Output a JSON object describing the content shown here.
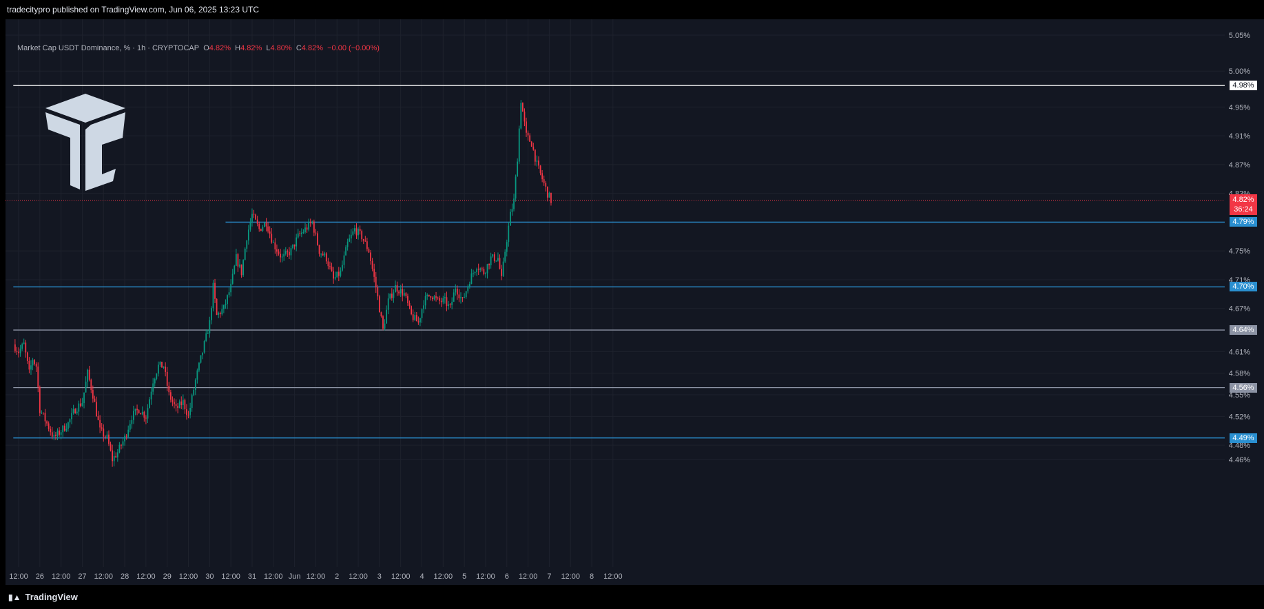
{
  "header": {
    "publisher": "tradecitypro published on TradingView.com, Jun 06, 2025 13:23 UTC"
  },
  "legend": {
    "symbol": "Market Cap USDT Dominance, % · 1h · CRYPTOCAP",
    "o_label": "O",
    "o_value": "4.82%",
    "h_label": "H",
    "h_value": "4.82%",
    "l_label": "L",
    "l_value": "4.80%",
    "c_label": "C",
    "c_value": "4.82%",
    "change": "−0.00 (−0.00%)"
  },
  "footer": {
    "brand": "TradingView"
  },
  "current_price": {
    "value": "4.82%",
    "countdown": "36:24",
    "color": "#f23645"
  },
  "colors": {
    "up": "#089981",
    "down": "#f23645",
    "background": "#131722",
    "grid": "#1e222d",
    "text": "#b2b5be"
  },
  "chart_data": {
    "type": "candlestick",
    "y_unit": "%",
    "ylim": [
      4.43,
      5.07
    ],
    "y_ticks": [
      "5.05%",
      "5.00%",
      "4.95%",
      "4.91%",
      "4.87%",
      "4.83%",
      "4.75%",
      "4.71%",
      "4.67%",
      "4.61%",
      "4.58%",
      "4.55%",
      "4.52%",
      "4.48%",
      "4.46%"
    ],
    "y_tick_values": [
      5.05,
      5.0,
      4.95,
      4.91,
      4.87,
      4.83,
      4.75,
      4.71,
      4.67,
      4.61,
      4.58,
      4.55,
      4.52,
      4.48,
      4.46
    ],
    "x_ticks": [
      "12:00",
      "26",
      "12:00",
      "27",
      "12:00",
      "28",
      "12:00",
      "29",
      "12:00",
      "30",
      "12:00",
      "31",
      "12:00",
      "Jun",
      "12:00",
      "2",
      "12:00",
      "3",
      "12:00",
      "4",
      "12:00",
      "5",
      "12:00",
      "6",
      "12:00",
      "7",
      "12:00",
      "8",
      "12:00"
    ],
    "x_tick_hours": [
      -12,
      0,
      12,
      24,
      36,
      48,
      60,
      72,
      84,
      96,
      108,
      120,
      132,
      144,
      156,
      168,
      180,
      192,
      204,
      216,
      228,
      240,
      252,
      264,
      276,
      288,
      300,
      312,
      324
    ],
    "horizontal_levels": [
      {
        "value": 4.98,
        "label": "4.98%",
        "color": "#ffffff",
        "start_hour": -15
      },
      {
        "value": 4.79,
        "label": "4.79%",
        "color": "#2a8fd0",
        "start_hour": 105
      },
      {
        "value": 4.7,
        "label": "4.70%",
        "color": "#2a8fd0",
        "start_hour": -15
      },
      {
        "value": 4.64,
        "label": "4.64%",
        "color": "#8c93a4",
        "start_hour": -15
      },
      {
        "value": 4.56,
        "label": "4.56%",
        "color": "#8c93a4",
        "start_hour": -15
      },
      {
        "value": 4.49,
        "label": "4.49%",
        "color": "#2a8fd0",
        "start_hour": -15
      }
    ],
    "price_path": [
      [
        -15,
        4.62
      ],
      [
        -12,
        4.61
      ],
      [
        -9,
        4.62
      ],
      [
        -6,
        4.58
      ],
      [
        -4,
        4.6
      ],
      [
        -2,
        4.59
      ],
      [
        0,
        4.53
      ],
      [
        4,
        4.51
      ],
      [
        8,
        4.49
      ],
      [
        12,
        4.5
      ],
      [
        16,
        4.51
      ],
      [
        20,
        4.53
      ],
      [
        24,
        4.54
      ],
      [
        27,
        4.58
      ],
      [
        30,
        4.55
      ],
      [
        34,
        4.5
      ],
      [
        38,
        4.49
      ],
      [
        41,
        4.46
      ],
      [
        44,
        4.47
      ],
      [
        48,
        4.49
      ],
      [
        52,
        4.52
      ],
      [
        56,
        4.53
      ],
      [
        60,
        4.52
      ],
      [
        64,
        4.57
      ],
      [
        67,
        4.59
      ],
      [
        70,
        4.59
      ],
      [
        73,
        4.55
      ],
      [
        77,
        4.53
      ],
      [
        81,
        4.54
      ],
      [
        84,
        4.52
      ],
      [
        88,
        4.57
      ],
      [
        92,
        4.61
      ],
      [
        96,
        4.65
      ],
      [
        98,
        4.7
      ],
      [
        100,
        4.66
      ],
      [
        104,
        4.67
      ],
      [
        108,
        4.7
      ],
      [
        111,
        4.74
      ],
      [
        114,
        4.72
      ],
      [
        117,
        4.77
      ],
      [
        120,
        4.8
      ],
      [
        124,
        4.78
      ],
      [
        128,
        4.79
      ],
      [
        132,
        4.76
      ],
      [
        137,
        4.74
      ],
      [
        142,
        4.75
      ],
      [
        146,
        4.77
      ],
      [
        150,
        4.78
      ],
      [
        154,
        4.79
      ],
      [
        158,
        4.75
      ],
      [
        162,
        4.74
      ],
      [
        166,
        4.71
      ],
      [
        170,
        4.72
      ],
      [
        174,
        4.76
      ],
      [
        178,
        4.78
      ],
      [
        182,
        4.77
      ],
      [
        186,
        4.75
      ],
      [
        190,
        4.7
      ],
      [
        192,
        4.67
      ],
      [
        194,
        4.64
      ],
      [
        197,
        4.68
      ],
      [
        201,
        4.7
      ],
      [
        206,
        4.69
      ],
      [
        210,
        4.66
      ],
      [
        214,
        4.65
      ],
      [
        217,
        4.68
      ],
      [
        221,
        4.69
      ],
      [
        225,
        4.68
      ],
      [
        229,
        4.68
      ],
      [
        232,
        4.67
      ],
      [
        235,
        4.7
      ],
      [
        239,
        4.68
      ],
      [
        243,
        4.71
      ],
      [
        247,
        4.73
      ],
      [
        251,
        4.72
      ],
      [
        255,
        4.74
      ],
      [
        259,
        4.74
      ],
      [
        261,
        4.71
      ],
      [
        263,
        4.75
      ],
      [
        266,
        4.8
      ],
      [
        268,
        4.82
      ],
      [
        270,
        4.88
      ],
      [
        272,
        4.96
      ],
      [
        275,
        4.91
      ],
      [
        278,
        4.9
      ],
      [
        281,
        4.87
      ],
      [
        284,
        4.85
      ],
      [
        287,
        4.83
      ],
      [
        289,
        4.82
      ]
    ]
  }
}
